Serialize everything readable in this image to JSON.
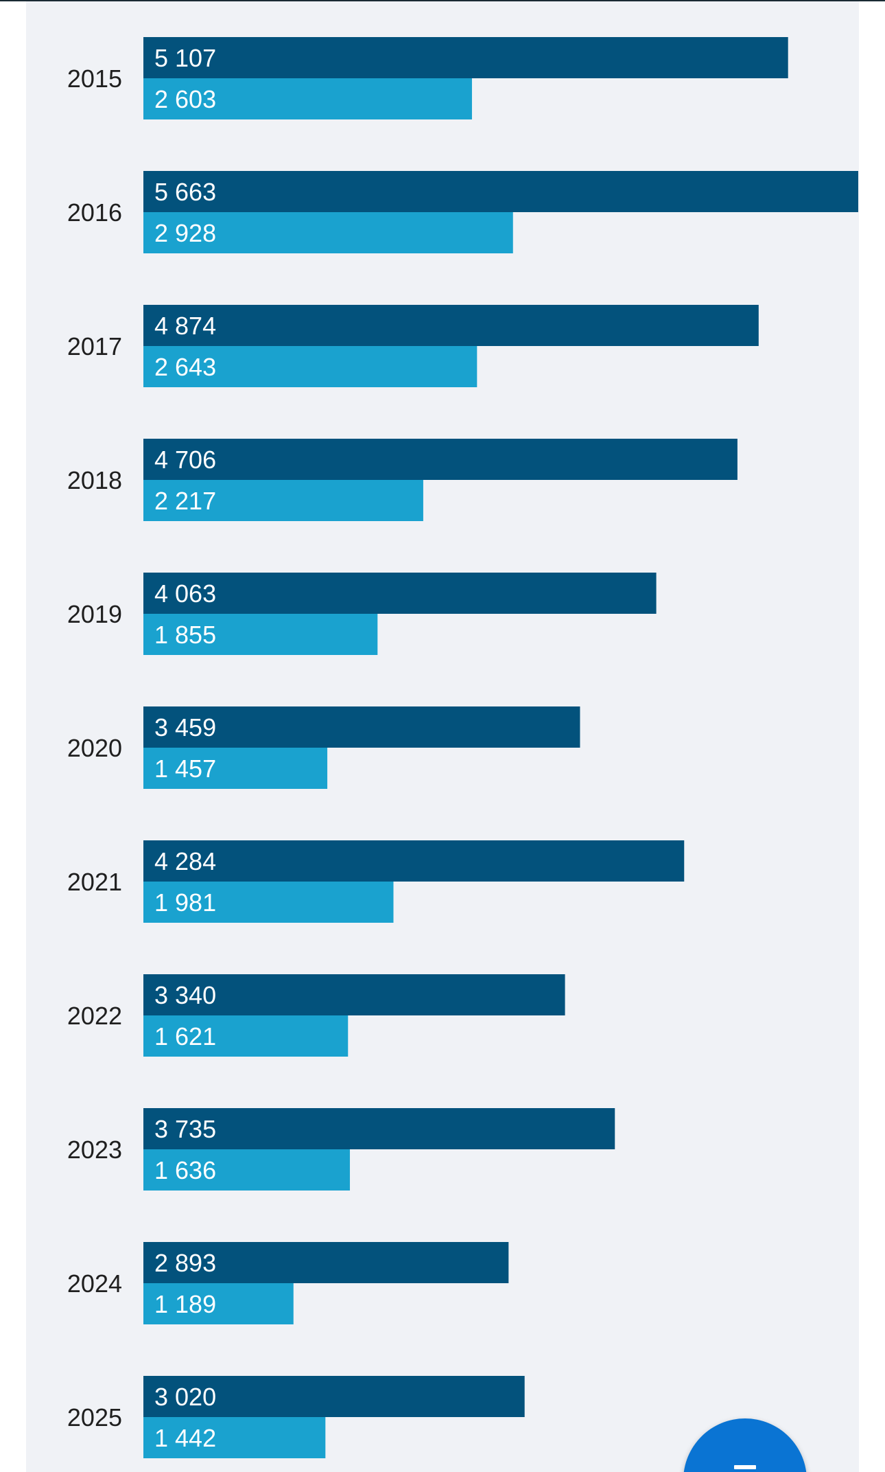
{
  "chart_data": {
    "type": "bar",
    "orientation": "horizontal",
    "categories": [
      "2015",
      "2016",
      "2017",
      "2018",
      "2019",
      "2020",
      "2021",
      "2022",
      "2023",
      "2024",
      "2025"
    ],
    "series": [
      {
        "values": [
          5107,
          5663,
          4874,
          4706,
          4063,
          3459,
          4284,
          3340,
          3735,
          2893,
          3020
        ],
        "labels": [
          "5 107",
          "5 663",
          "4 874",
          "4 706",
          "4 063",
          "3 459",
          "4 284",
          "3 340",
          "3 735",
          "2 893",
          "3 020"
        ],
        "color": "#03527c"
      },
      {
        "values": [
          2603,
          2928,
          2643,
          2217,
          1855,
          1457,
          1981,
          1621,
          1636,
          1189,
          1442
        ],
        "labels": [
          "2 603",
          "2 928",
          "2 643",
          "2 217",
          "1 855",
          "1 457",
          "1 981",
          "1 621",
          "1 636",
          "1 189",
          "1 442"
        ],
        "color": "#1aa2cf"
      }
    ],
    "xlim": [
      0,
      5663
    ],
    "grid": false,
    "legend": "none"
  },
  "colors": {
    "panel_background": "#f0f2f6",
    "fab": "#0a74d3"
  },
  "fab": {
    "icon": "menu-icon"
  }
}
